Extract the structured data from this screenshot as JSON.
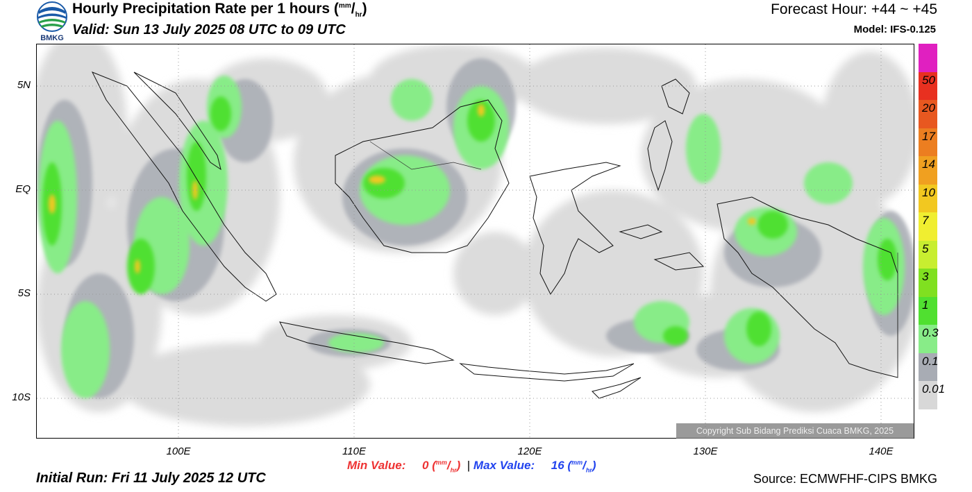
{
  "header": {
    "title": "Hourly Precipitation Rate per 1 hours",
    "title_unit_num": "mm",
    "title_unit_den": "hr",
    "valid": "Valid: Sun 13 July 2025 08 UTC to 09 UTC",
    "forecast_hour": "Forecast Hour: +44 ~ +45",
    "model": "Model: IFS-0.125",
    "logo_text": "BMKG"
  },
  "map": {
    "lat_labels": [
      "5N",
      "EQ",
      "5S",
      "10S"
    ],
    "lon_labels": [
      "100E",
      "110E",
      "120E",
      "130E",
      "140E"
    ],
    "copyright": "Copyright Sub Bidang Prediksi Cuaca BMKG, 2025"
  },
  "stats": {
    "min_label": "Min Value:",
    "min_value": "0",
    "max_label": "Max Value:",
    "max_value": "16",
    "unit_num": "mm",
    "unit_den": "hr",
    "separator": "|"
  },
  "footer": {
    "initial_run": "Initial Run: Fri 11 July 2025 12 UTC",
    "source": "Source: ECMWFHF-CIPS BMKG"
  },
  "colorbar": {
    "labels": [
      "50",
      "20",
      "17",
      "14",
      "10",
      "7",
      "5",
      "3",
      "1",
      "0.3",
      "0.1",
      "0.01"
    ],
    "colors": [
      "#e020c0",
      "#e83020",
      "#e85820",
      "#ec7e20",
      "#f0a020",
      "#f2c820",
      "#f0ee30",
      "#c8ee30",
      "#80e020",
      "#50e030",
      "#88ec88",
      "#a8acb4",
      "#d8d8d8"
    ]
  }
}
